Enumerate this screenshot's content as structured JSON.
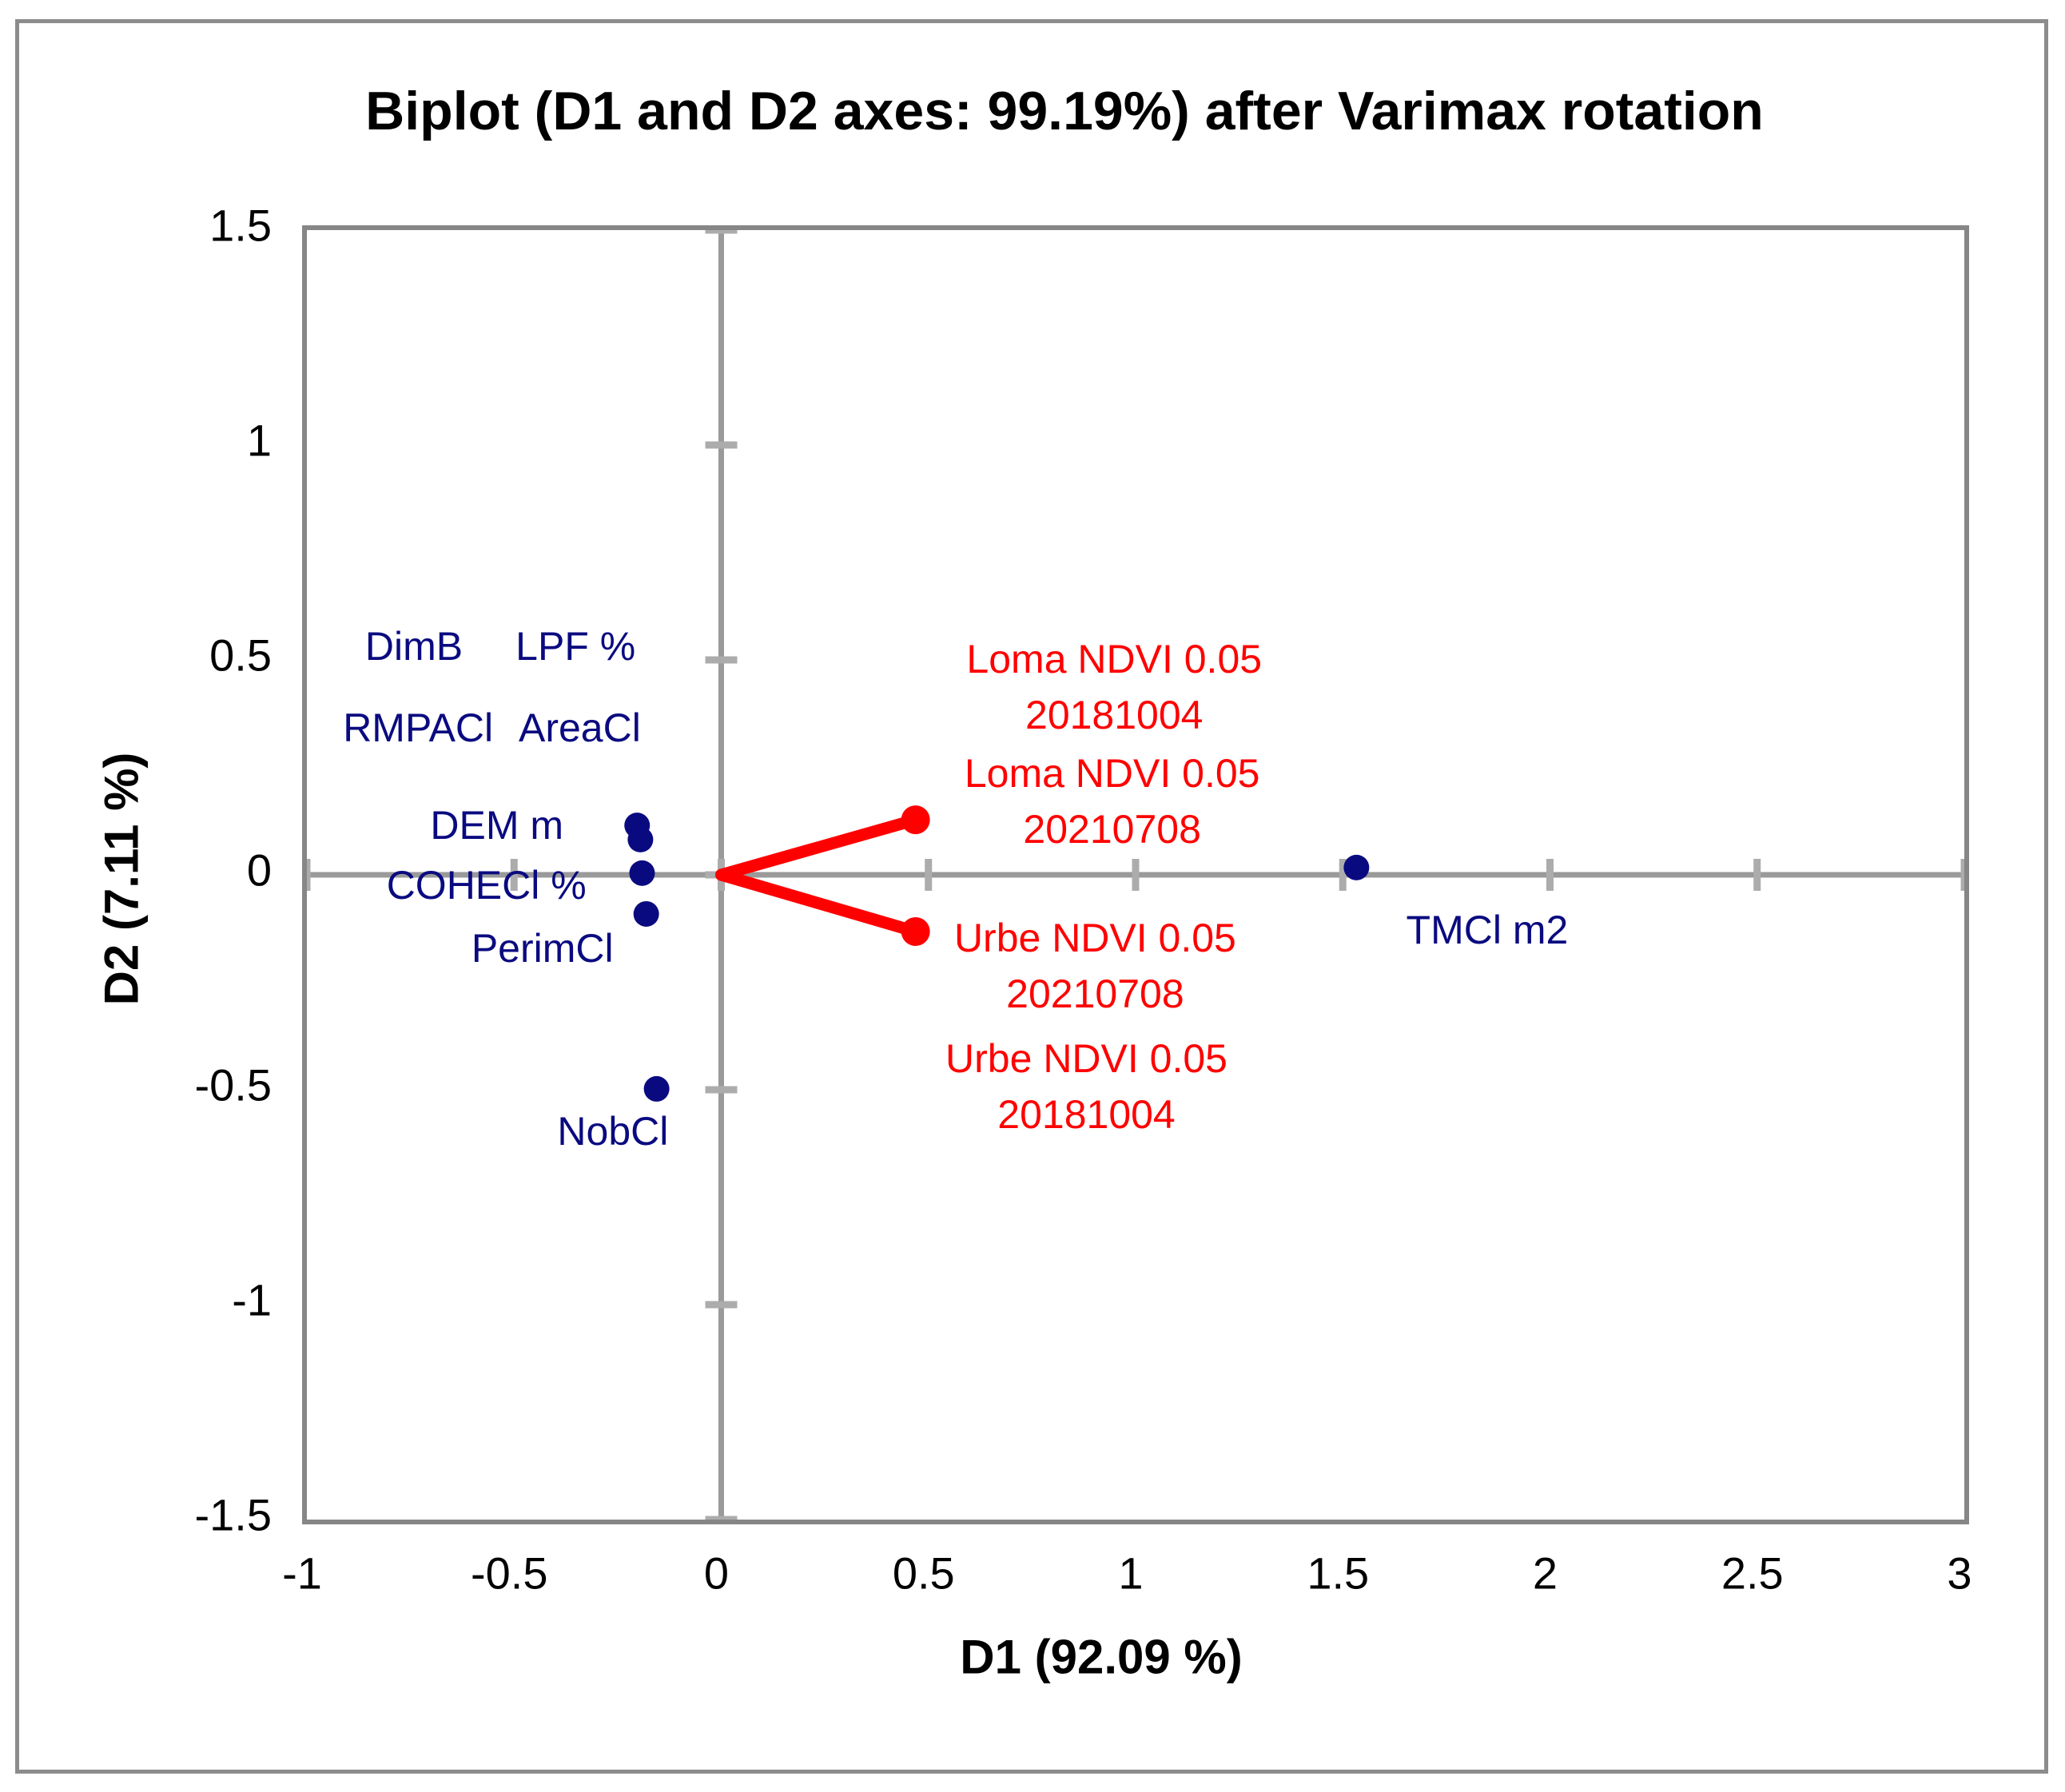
{
  "figure": {
    "title": "Biplot (D1 and D2 axes: 99.19%) after Varimax rotation"
  },
  "chart_data": {
    "type": "scatter",
    "subtype": "pca-biplot-varimax",
    "title": "Biplot (D1 and D2 axes: 99.19%) after Varimax rotation",
    "xlabel": "D1 (92.09 %)",
    "ylabel": "D2 (7.11 %)",
    "xlim": [
      -1,
      3
    ],
    "ylim": [
      -1.5,
      1.5
    ],
    "grid": false,
    "legend": "none",
    "x_ticks": [
      {
        "value": -1,
        "label": "-1"
      },
      {
        "value": -0.5,
        "label": "-0.5"
      },
      {
        "value": 0,
        "label": "0"
      },
      {
        "value": 0.5,
        "label": "0.5"
      },
      {
        "value": 1,
        "label": "1"
      },
      {
        "value": 1.5,
        "label": "1.5"
      },
      {
        "value": 2,
        "label": "2"
      },
      {
        "value": 2.5,
        "label": "2.5"
      },
      {
        "value": 3,
        "label": "3"
      }
    ],
    "y_ticks": [
      {
        "value": 1.5,
        "label": "1.5"
      },
      {
        "value": 1,
        "label": "1"
      },
      {
        "value": 0.5,
        "label": "0.5"
      },
      {
        "value": 0,
        "label": "0"
      },
      {
        "value": -0.5,
        "label": "-0.5"
      },
      {
        "value": -1,
        "label": "-1"
      },
      {
        "value": -1.5,
        "label": "-1.5"
      }
    ],
    "colors": {
      "variables": "#0a0a80",
      "observations": "#ff0000",
      "zero_lines": "#9a9a9a",
      "tick_marks": "#acacac",
      "plot_border": "#868686",
      "outer_border": "#8c8c8c",
      "text": "#000000"
    },
    "variables": {
      "points": [
        {
          "x": -0.203,
          "y": 0.115
        },
        {
          "x": -0.195,
          "y": 0.082
        },
        {
          "x": -0.191,
          "y": 0.004
        },
        {
          "x": -0.181,
          "y": -0.091
        },
        {
          "x": -0.156,
          "y": -0.498
        },
        {
          "x": 1.533,
          "y": 0.017
        }
      ],
      "labels": [
        {
          "text": "DimB",
          "x": -0.73,
          "y": 0.52
        },
        {
          "text": "LPF %",
          "x": -0.34,
          "y": 0.52
        },
        {
          "text": "RMPACl",
          "x": -0.72,
          "y": 0.33
        },
        {
          "text": "AreaCl",
          "x": -0.33,
          "y": 0.33
        },
        {
          "text": "DEM m",
          "x": -0.53,
          "y": 0.105
        },
        {
          "text": "COHECl %",
          "x": -0.555,
          "y": -0.035
        },
        {
          "text": "PerimCl",
          "x": -0.42,
          "y": -0.182
        },
        {
          "text": "NobCl",
          "x": -0.25,
          "y": -0.607
        },
        {
          "text": "TMCl m2",
          "x": 1.86,
          "y": -0.14
        }
      ]
    },
    "observations": {
      "vectors": [
        {
          "x": 0.469,
          "y": 0.128
        },
        {
          "x": 0.469,
          "y": -0.132
        }
      ],
      "labels": [
        {
          "lines": [
            "Loma NDVI 0.05",
            "20181004"
          ],
          "x": 0.96,
          "y": 0.425
        },
        {
          "lines": [
            "Loma NDVI 0.05",
            "20210708"
          ],
          "x": 0.955,
          "y": 0.16
        },
        {
          "lines": [
            "Urbe NDVI 0.05",
            "20210708"
          ],
          "x": 0.914,
          "y": -0.223
        },
        {
          "lines": [
            "Urbe NDVI 0.05",
            "20181004"
          ],
          "x": 0.893,
          "y": -0.504
        }
      ]
    }
  }
}
